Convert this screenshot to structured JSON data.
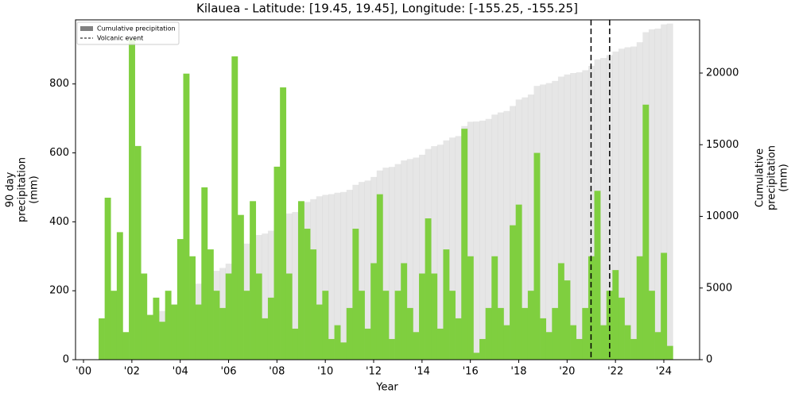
{
  "chart_data": {
    "type": "bar",
    "title": "Kilauea - Latitude: [19.45, 19.45], Longitude: [-155.25, -155.25]",
    "xlabel": "Year",
    "ylabel": [
      "90 day",
      "precipitation",
      "(mm)"
    ],
    "y2label": [
      "Cumulative",
      "precipitation",
      "(mm)"
    ],
    "x": [
      2000.75,
      2001.0,
      2001.25,
      2001.5,
      2001.75,
      2002.0,
      2002.25,
      2002.5,
      2002.75,
      2003.0,
      2003.25,
      2003.5,
      2003.75,
      2004.0,
      2004.25,
      2004.5,
      2004.75,
      2005.0,
      2005.25,
      2005.5,
      2005.75,
      2006.0,
      2006.25,
      2006.5,
      2006.75,
      2007.0,
      2007.25,
      2007.5,
      2007.75,
      2008.0,
      2008.25,
      2008.5,
      2008.75,
      2009.0,
      2009.25,
      2009.5,
      2009.75,
      2010.0,
      2010.25,
      2010.5,
      2010.75,
      2011.0,
      2011.25,
      2011.5,
      2011.75,
      2012.0,
      2012.25,
      2012.5,
      2012.75,
      2013.0,
      2013.25,
      2013.5,
      2013.75,
      2014.0,
      2014.25,
      2014.5,
      2014.75,
      2015.0,
      2015.25,
      2015.5,
      2015.75,
      2016.0,
      2016.25,
      2016.5,
      2016.75,
      2017.0,
      2017.25,
      2017.5,
      2017.75,
      2018.0,
      2018.25,
      2018.5,
      2018.75,
      2019.0,
      2019.25,
      2019.5,
      2019.75,
      2020.0,
      2020.25,
      2020.5,
      2020.75,
      2021.0,
      2021.25,
      2021.5,
      2021.75,
      2022.0,
      2022.25,
      2022.5,
      2022.75,
      2023.0,
      2023.25,
      2023.5,
      2023.75,
      2024.0,
      2024.25
    ],
    "series": [
      {
        "color": "#7fcf3f",
        "values": [
          120,
          470,
          200,
          370,
          80,
          930,
          620,
          250,
          130,
          180,
          110,
          200,
          160,
          350,
          830,
          300,
          160,
          500,
          320,
          200,
          150,
          250,
          880,
          420,
          200,
          460,
          250,
          120,
          180,
          560,
          790,
          250,
          90,
          460,
          380,
          320,
          160,
          200,
          60,
          100,
          50,
          150,
          380,
          200,
          90,
          280,
          480,
          200,
          60,
          200,
          280,
          150,
          80,
          250,
          410,
          250,
          90,
          320,
          200,
          120,
          670,
          300,
          20,
          60,
          150,
          300,
          150,
          100,
          390,
          450,
          150,
          200,
          600,
          120,
          80,
          150,
          280,
          230,
          100,
          60,
          150,
          300,
          490,
          100,
          200,
          260,
          180,
          100,
          60,
          300,
          740,
          200,
          80,
          310,
          40
        ]
      },
      {
        "name": "Cumulative precipitation",
        "axis": "y2",
        "color": "#808080",
        "values": [
          100,
          300,
          600,
          900,
          1100,
          1500,
          2300,
          2800,
          3000,
          3200,
          3400,
          3600,
          3800,
          4100,
          4800,
          5100,
          5300,
          5700,
          6000,
          6200,
          6400,
          6700,
          7500,
          7900,
          8100,
          8500,
          8700,
          8800,
          9000,
          9400,
          10000,
          10200,
          10300,
          10700,
          11000,
          11200,
          11400,
          11500,
          11550,
          11650,
          11700,
          11850,
          12200,
          12400,
          12500,
          12750,
          13200,
          13400,
          13450,
          13650,
          13900,
          14000,
          14100,
          14300,
          14700,
          14900,
          15000,
          15300,
          15500,
          15600,
          16300,
          16600,
          16620,
          16680,
          16800,
          17100,
          17250,
          17350,
          17700,
          18150,
          18300,
          18500,
          19100,
          19200,
          19300,
          19450,
          19750,
          19900,
          20000,
          20050,
          20200,
          20500,
          20950,
          21050,
          21250,
          21500,
          21700,
          21800,
          21850,
          22150,
          22850,
          23050,
          23100,
          23400,
          23450
        ]
      }
    ],
    "events": {
      "name": "Volcanic event",
      "color": "#000000",
      "x": [
        2020.99,
        2021.76
      ]
    },
    "xlim": [
      1999.67,
      2025.48
    ],
    "xticks": [
      {
        "value": 2000,
        "label": "'00"
      },
      {
        "value": 2002,
        "label": "'02"
      },
      {
        "value": 2004,
        "label": "'04"
      },
      {
        "value": 2006,
        "label": "'06"
      },
      {
        "value": 2008,
        "label": "'08"
      },
      {
        "value": 2010,
        "label": "'10"
      },
      {
        "value": 2012,
        "label": "'12"
      },
      {
        "value": 2014,
        "label": "'14"
      },
      {
        "value": 2016,
        "label": "'16"
      },
      {
        "value": 2018,
        "label": "'18"
      },
      {
        "value": 2020,
        "label": "'20"
      },
      {
        "value": 2022,
        "label": "'22"
      },
      {
        "value": 2024,
        "label": "'24"
      }
    ],
    "ylim": [
      0,
      986
    ],
    "yticks": [
      0,
      200,
      400,
      600,
      800
    ],
    "y2lim": [
      0,
      23712
    ],
    "y2ticks": [
      0,
      5000,
      10000,
      15000,
      20000
    ],
    "legend": "upper left"
  }
}
